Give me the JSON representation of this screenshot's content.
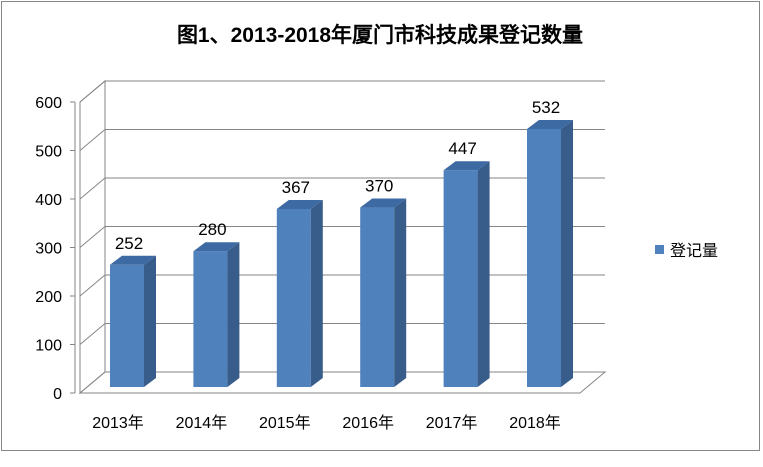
{
  "chart_data": {
    "type": "bar",
    "title": "图1、2013-2018年厦门市科技成果登记数量",
    "categories": [
      "2013年",
      "2014年",
      "2015年",
      "2016年",
      "2017年",
      "2018年"
    ],
    "series": [
      {
        "name": "登记量",
        "values": [
          252,
          280,
          367,
          370,
          447,
          532
        ],
        "color": "#4F81BD"
      }
    ],
    "data_labels": [
      "252",
      "280",
      "367",
      "370",
      "447",
      "532"
    ],
    "y_ticks": [
      "0",
      "100",
      "200",
      "300",
      "400",
      "500",
      "600"
    ],
    "ylim": [
      0,
      600
    ],
    "grid": true,
    "legend": "right",
    "xlabel": "",
    "ylabel": ""
  }
}
